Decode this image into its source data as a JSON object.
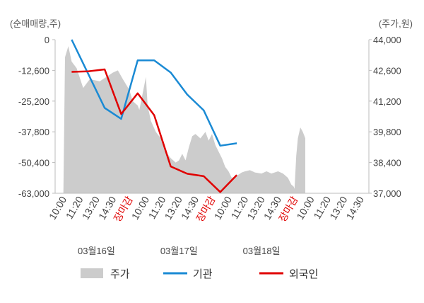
{
  "chart_data": {
    "type": "area",
    "left_axis_unit": "(순매매량,주)",
    "right_axis_unit": "(주가,원)",
    "left_ticks": [
      0,
      -12600,
      -25200,
      -37800,
      -50400,
      -63000
    ],
    "left_tick_labels": [
      "0",
      "-12,600",
      "-25,200",
      "-37,800",
      "-50,400",
      "-63,000"
    ],
    "right_ticks": [
      44000,
      42600,
      41200,
      39800,
      38400,
      37000
    ],
    "right_tick_labels": [
      "44,000",
      "42,600",
      "41,200",
      "39,800",
      "38,400",
      "37,000"
    ],
    "ylim_left": [
      -63000,
      0
    ],
    "ylim_right": [
      37000,
      44000
    ],
    "x_ticks": [
      "10:00",
      "11:20",
      "13:20",
      "14:30",
      "장마감",
      "10:00",
      "11:20",
      "13:20",
      "14:30",
      "장마감",
      "10:00",
      "11:20",
      "13:20",
      "14:30",
      "장마감",
      "10:00",
      "11:20",
      "13:20",
      "14:30"
    ],
    "close_label": "장마감",
    "days": [
      "03월16일",
      "03월17일",
      "03월18일"
    ],
    "legend": [
      "주가",
      "기관",
      "외국인"
    ],
    "colors": {
      "price": "#cccccc",
      "institution": "#1a8ad4",
      "foreign": "#e00000"
    },
    "price_series": [
      [
        0,
        37000
      ],
      [
        0.1,
        43200
      ],
      [
        0.3,
        43700
      ],
      [
        0.5,
        43000
      ],
      [
        0.8,
        42700
      ],
      [
        1.2,
        41800
      ],
      [
        1.6,
        42200
      ],
      [
        2.2,
        42100
      ],
      [
        2.6,
        42300
      ],
      [
        3.0,
        42500
      ],
      [
        3.3,
        42600
      ],
      [
        3.6,
        42200
      ],
      [
        4.0,
        41700
      ],
      [
        4.2,
        41200
      ],
      [
        4.5,
        41000
      ],
      [
        4.6,
        40800
      ],
      [
        5.0,
        42300
      ],
      [
        5.1,
        41000
      ],
      [
        5.3,
        40300
      ],
      [
        5.6,
        39800
      ],
      [
        5.9,
        39500
      ],
      [
        6.2,
        38900
      ],
      [
        6.5,
        38600
      ],
      [
        6.8,
        38400
      ],
      [
        7.0,
        38500
      ],
      [
        7.2,
        38800
      ],
      [
        7.4,
        38500
      ],
      [
        7.6,
        39100
      ],
      [
        7.8,
        39600
      ],
      [
        8.0,
        39700
      ],
      [
        8.3,
        39500
      ],
      [
        8.6,
        39800
      ],
      [
        8.8,
        39400
      ],
      [
        9.0,
        39700
      ],
      [
        9.2,
        39200
      ],
      [
        9.4,
        38900
      ],
      [
        9.6,
        38600
      ],
      [
        9.8,
        38200
      ],
      [
        10.0,
        38000
      ],
      [
        10.2,
        37700
      ],
      [
        10.5,
        37800
      ],
      [
        10.8,
        37950
      ],
      [
        11.0,
        38000
      ],
      [
        11.3,
        38050
      ],
      [
        11.6,
        37950
      ],
      [
        12.0,
        37900
      ],
      [
        12.3,
        38000
      ],
      [
        12.6,
        37900
      ],
      [
        13.0,
        38000
      ],
      [
        13.3,
        37900
      ],
      [
        13.6,
        37700
      ],
      [
        13.8,
        37400
      ],
      [
        13.95,
        37300
      ],
      [
        14.0,
        37200
      ],
      [
        14.1,
        38700
      ],
      [
        14.2,
        39500
      ],
      [
        14.35,
        40000
      ],
      [
        14.5,
        39800
      ],
      [
        14.6,
        39600
      ],
      [
        14.65,
        39500
      ]
    ],
    "institution_series": [
      [
        0.5,
        0
      ],
      [
        2.5,
        -28000
      ],
      [
        3.5,
        -32500
      ],
      [
        4.5,
        -8500
      ],
      [
        5.5,
        -8500
      ],
      [
        6.5,
        -13500
      ],
      [
        7.5,
        -22500
      ],
      [
        8.5,
        -29000
      ],
      [
        9.5,
        -43500
      ],
      [
        10.5,
        -42500
      ]
    ],
    "foreign_series": [
      [
        0.5,
        -13200
      ],
      [
        1.5,
        -13000
      ],
      [
        2.5,
        -12200
      ],
      [
        3.5,
        -30500
      ],
      [
        4.5,
        -22000
      ],
      [
        5.5,
        -31000
      ],
      [
        6.5,
        -52000
      ],
      [
        7.5,
        -55000
      ],
      [
        8.5,
        -56000
      ],
      [
        9.5,
        -62500
      ],
      [
        10.5,
        -55500
      ]
    ]
  }
}
